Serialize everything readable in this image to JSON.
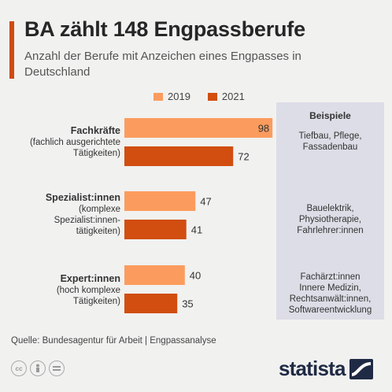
{
  "header": {
    "title": "BA zählt 148 Engpassberufe",
    "subtitle": "Anzahl der Berufe mit Anzeichen eines Engpasses in Deutschland"
  },
  "colors": {
    "accent": "#cf4b13",
    "series_2019": "#fb9c5e",
    "series_2021": "#d14e10"
  },
  "chart_data": {
    "type": "bar",
    "orientation": "horizontal",
    "categories": [
      "Fachkräfte (fachlich ausgerichtete Tätigkeiten)",
      "Spezialist:innen (komplexe Spezialist:innen-tätigkeiten)",
      "Expert:innen (hoch komplexe Tätigkeiten)"
    ],
    "series": [
      {
        "name": "2019",
        "values": [
          98,
          47,
          40
        ]
      },
      {
        "name": "2021",
        "values": [
          72,
          41,
          35
        ]
      }
    ],
    "legend_position": "top",
    "grid": false
  },
  "categories": [
    {
      "main": "Fachkräfte",
      "sub": "(fachlich ausgerichtete\nTätigkeiten)"
    },
    {
      "main": "Spezialist:innen",
      "sub": "(komplexe\nSpezialist:innen-\ntätigkeiten)"
    },
    {
      "main": "Expert:innen",
      "sub": "(hoch komplexe\nTätigkeiten)"
    }
  ],
  "examples": {
    "title": "Beispiele",
    "items": [
      "Tiefbau, Pflege,\nFassadenbau",
      "Bauelektrik,\nPhysiotherapie,\nFahrlehrer:innen",
      "Fachärzt:innen\nInnere Medizin,\nRechtsanwält:innen,\nSoftwareentwicklung"
    ]
  },
  "source": "Quelle: Bundesagentur für Arbeit | Engpassanalyse",
  "footer": {
    "license_icons": [
      "cc-icon",
      "by-icon",
      "nd-icon"
    ],
    "logo": "statista"
  }
}
